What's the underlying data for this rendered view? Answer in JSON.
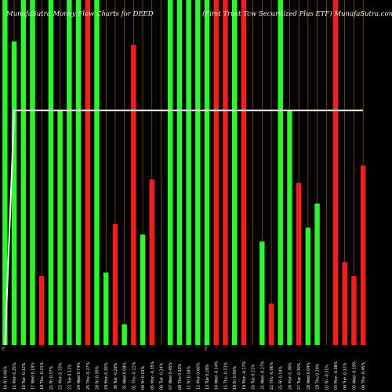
{
  "header": {
    "left_title": "MunafaSutra Money Flow Charts for DEED",
    "right_title": "(First Trust Tcw Securitized Plus ETF) MunafaSutra.com"
  },
  "chart_data": {
    "type": "bar",
    "title": "MunafaSutra Money Flow Charts for DEED",
    "subtitle": "(First Trust Tcw Securitized Plus ETF) MunafaSutra.com",
    "colors": {
      "up": "#22ff22",
      "down": "#ff1a1a",
      "line": "#ffffff",
      "grid": "#b06a00",
      "background": "#000000"
    },
    "categories": [
      "14 Fri 0.06%",
      "15 Mon 0.25%",
      "16 Tue -0.12%",
      "17 Wed 0.18%",
      "18 Thu -0.21%",
      "21 Fri 0.37%",
      "22 Mon 0.33%",
      "23 Tue 0.11%",
      "24 Wed 0.74%",
      "25 Thu -0.27%",
      "28 Fri 0.30%",
      "29 Mon 0.26%",
      "30 Tue -0.28%",
      "31 Wed 0.08%",
      "01 Thu -0.11%",
      "04 Fri 0.15%",
      "05 Mon -0.35%",
      "06 Tue -0.24%",
      "07 Wed 0.45%",
      "08 Thu 0.10%",
      "11 Fri 0.18%",
      "12 Mon 0.66%",
      "13 Tue 0.28%",
      "14 Wed -0.14%",
      "15 Thu -0.23%",
      "18 Fri 0.50%",
      "19 Mon -0.17%",
      "20 Tue 0.21%",
      "21 Wed -0.27%",
      "22 Thu -0.06%",
      "25 Fri 0.14%",
      "26 Mon 0.38%",
      "27 Tue -0.30%",
      "28 Wed 0.04%",
      "29 Thu 0.29%",
      "02 Fri -0.31%",
      "03 Mon -0.08%",
      "04 Tue -0.12%",
      "05 Wed -0.19%",
      "06 Thu -0.45%"
    ],
    "bars": [
      {
        "color": "up",
        "value": 100
      },
      {
        "color": "up",
        "value": 88
      },
      {
        "color": "up",
        "value": 100
      },
      {
        "color": "up",
        "value": 100
      },
      {
        "color": "down",
        "value": 20
      },
      {
        "color": "up",
        "value": 100
      },
      {
        "color": "up",
        "value": 68
      },
      {
        "color": "up",
        "value": 100
      },
      {
        "color": "up",
        "value": 100
      },
      {
        "color": "down",
        "value": 100
      },
      {
        "color": "up",
        "value": 100
      },
      {
        "color": "up",
        "value": 21
      },
      {
        "color": "down",
        "value": 35
      },
      {
        "color": "up",
        "value": 6
      },
      {
        "color": "down",
        "value": 87
      },
      {
        "color": "up",
        "value": 32
      },
      {
        "color": "down",
        "value": 48
      },
      {
        "color": "up",
        "value": 0
      },
      {
        "color": "up",
        "value": 100
      },
      {
        "color": "up",
        "value": 100
      },
      {
        "color": "up",
        "value": 100
      },
      {
        "color": "up",
        "value": 100
      },
      {
        "color": "up",
        "value": 100
      },
      {
        "color": "down",
        "value": 100
      },
      {
        "color": "down",
        "value": 100
      },
      {
        "color": "up",
        "value": 100
      },
      {
        "color": "down",
        "value": 100
      },
      {
        "color": "down",
        "value": 0
      },
      {
        "color": "up",
        "value": 30
      },
      {
        "color": "down",
        "value": 12
      },
      {
        "color": "up",
        "value": 100
      },
      {
        "color": "up",
        "value": 68
      },
      {
        "color": "down",
        "value": 47
      },
      {
        "color": "up",
        "value": 34
      },
      {
        "color": "up",
        "value": 41
      },
      {
        "color": "up",
        "value": 0
      },
      {
        "color": "down",
        "value": 100
      },
      {
        "color": "down",
        "value": 24
      },
      {
        "color": "down",
        "value": 20
      },
      {
        "color": "down",
        "value": 52
      }
    ],
    "line": [
      0,
      68,
      68,
      68,
      68,
      68,
      68,
      68,
      68,
      68,
      68,
      68,
      68,
      68,
      68,
      68,
      68,
      68,
      68,
      68,
      68,
      68,
      68,
      68,
      68,
      68,
      68,
      68,
      68,
      68,
      68,
      68,
      68,
      68,
      68,
      68,
      68,
      68,
      68,
      68
    ],
    "special_labels": [
      "fN",
      "fo0%"
    ],
    "ylim": [
      0,
      100
    ],
    "grid": true
  }
}
